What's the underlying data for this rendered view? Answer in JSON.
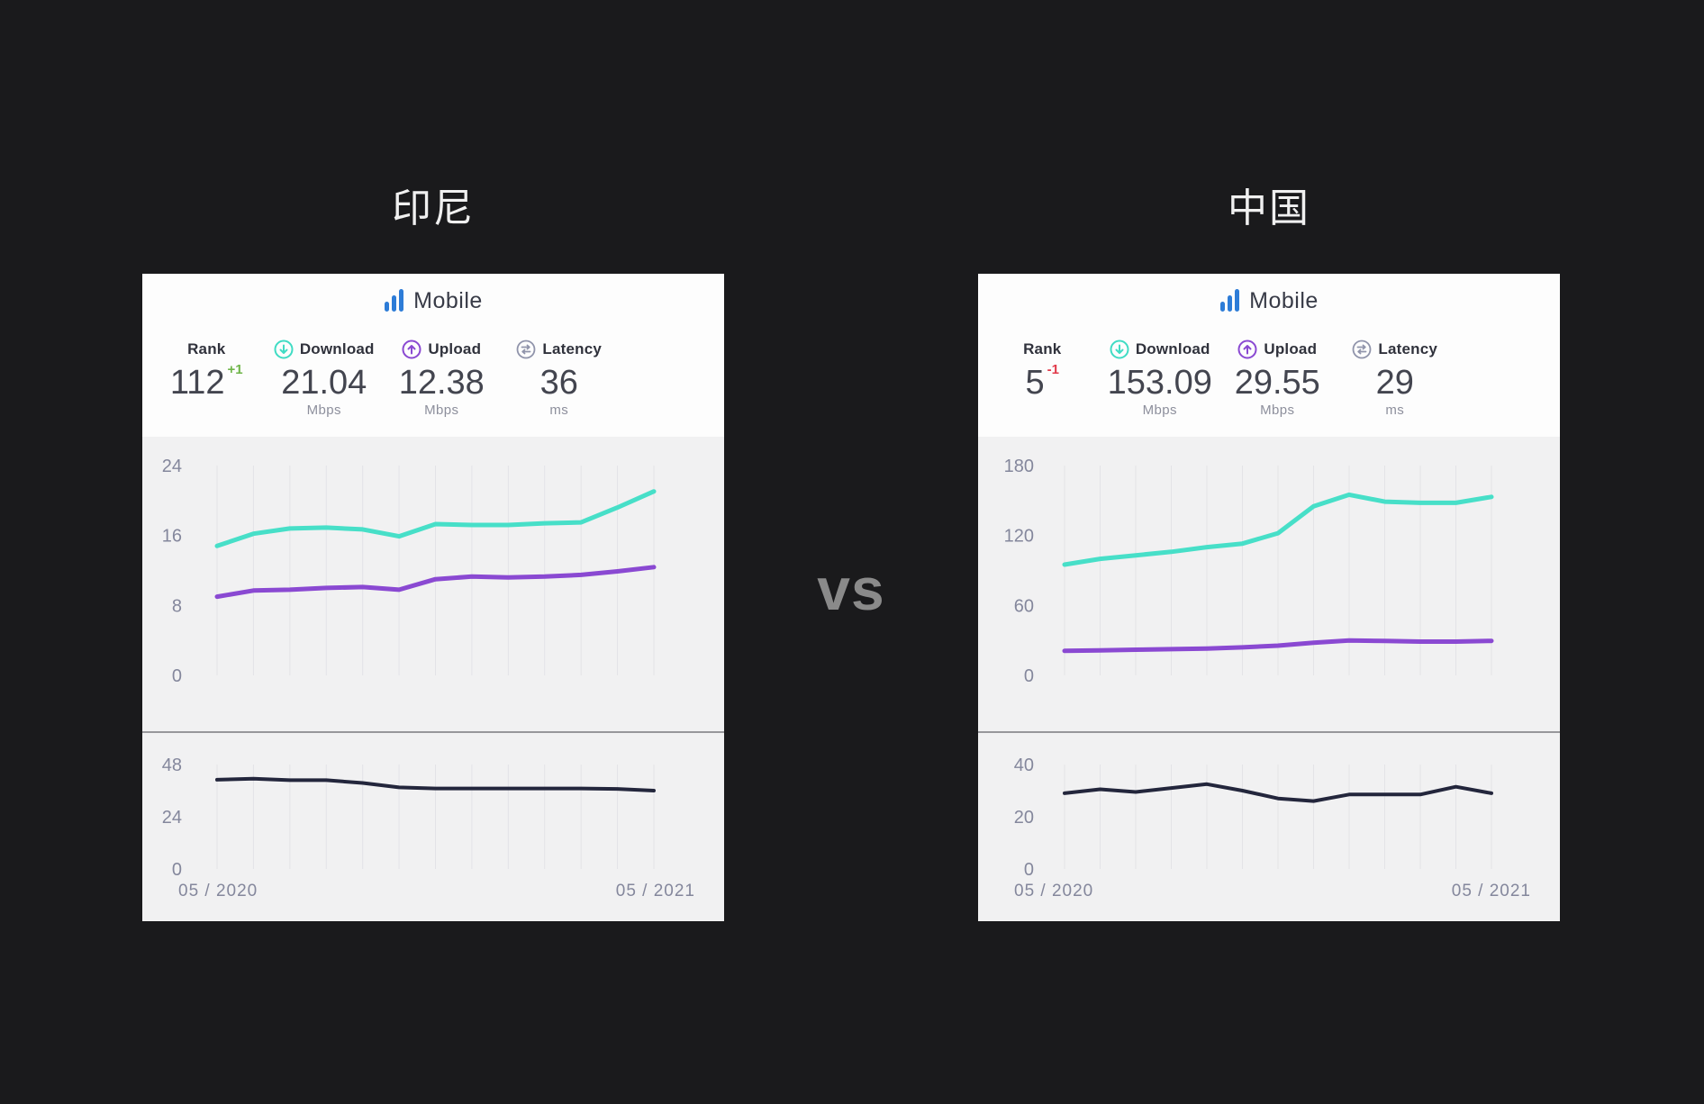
{
  "page": {
    "vs_label": "vs"
  },
  "colors": {
    "background": "#1a1a1c",
    "teal_download": "#47dfc8",
    "purple_upload": "#8a49d2",
    "navy_latency": "#23263c",
    "mobile_blue": "#2d7cd7",
    "green": "#6fb549",
    "red": "#e13a4a",
    "axis_label": "#84879c",
    "gridline": "#e3e3e7",
    "vs_gray": "#8a8a8a"
  },
  "cards": [
    {
      "title": "印尼",
      "mobile_label": "Mobile",
      "stats": {
        "rank": {
          "label": "Rank",
          "value": "112",
          "change": "+1",
          "change_class": "stat-change change up"
        },
        "download": {
          "label": "Download",
          "value": "21.04",
          "unit": "Mbps"
        },
        "upload": {
          "label": "Upload",
          "value": "12.38",
          "unit": "Mbps"
        },
        "latency": {
          "label": "Latency",
          "value": "36",
          "unit": "ms"
        }
      },
      "x_axis": {
        "start": "05 / 2020",
        "end": "05 / 2021"
      }
    },
    {
      "title": "中国",
      "mobile_label": "Mobile",
      "stats": {
        "rank": {
          "label": "Rank",
          "value": "5",
          "change": "-1",
          "change_class": "stat-change change down"
        },
        "download": {
          "label": "Download",
          "value": "153.09",
          "unit": "Mbps"
        },
        "upload": {
          "label": "Upload",
          "value": "29.55",
          "unit": "Mbps"
        },
        "latency": {
          "label": "Latency",
          "value": "29",
          "unit": "ms"
        }
      },
      "x_axis": {
        "start": "05 / 2020",
        "end": "05 / 2021"
      }
    }
  ],
  "chart_data": [
    {
      "card": "印尼",
      "position": "top",
      "type": "line",
      "x": [
        "05/2020",
        "06/2020",
        "07/2020",
        "08/2020",
        "09/2020",
        "10/2020",
        "11/2020",
        "12/2020",
        "01/2021",
        "02/2021",
        "03/2021",
        "04/2021",
        "05/2021"
      ],
      "series": [
        {
          "name": "Download (Mbps)",
          "key": "download-line",
          "color": "#47dfc8",
          "width": 5,
          "values": [
            14.8,
            16.2,
            16.8,
            16.9,
            16.7,
            15.9,
            17.3,
            17.2,
            17.2,
            17.4,
            17.5,
            19.2,
            21.04
          ]
        },
        {
          "name": "Upload (Mbps)",
          "key": "upload-line",
          "color": "#8a49d2",
          "width": 5,
          "values": [
            9.0,
            9.7,
            9.8,
            10.0,
            10.1,
            9.8,
            11.0,
            11.3,
            11.2,
            11.3,
            11.5,
            11.9,
            12.38
          ]
        }
      ],
      "yticks": [
        0,
        8,
        16,
        24
      ],
      "ylim": [
        0,
        24
      ],
      "grid": "vertical",
      "legend": "none"
    },
    {
      "card": "印尼",
      "position": "bottom",
      "type": "line",
      "x": [
        "05/2020",
        "06/2020",
        "07/2020",
        "08/2020",
        "09/2020",
        "10/2020",
        "11/2020",
        "12/2020",
        "01/2021",
        "02/2021",
        "03/2021",
        "04/2021",
        "05/2021"
      ],
      "series": [
        {
          "name": "Latency (ms)",
          "key": "latency-line",
          "color": "#23263c",
          "width": 4,
          "values": [
            41,
            41.5,
            40.8,
            40.8,
            39.5,
            37.5,
            37,
            37,
            37,
            37,
            37,
            36.8,
            36
          ]
        }
      ],
      "yticks": [
        0,
        24,
        48
      ],
      "ylim": [
        0,
        48
      ],
      "grid": "vertical",
      "legend": "none",
      "xtick_labels": [
        "05 / 2020",
        "05 / 2021"
      ]
    },
    {
      "card": "中国",
      "position": "top",
      "type": "line",
      "x": [
        "05/2020",
        "06/2020",
        "07/2020",
        "08/2020",
        "09/2020",
        "10/2020",
        "11/2020",
        "12/2020",
        "01/2021",
        "02/2021",
        "03/2021",
        "04/2021",
        "05/2021"
      ],
      "series": [
        {
          "name": "Download (Mbps)",
          "key": "download-line",
          "color": "#47dfc8",
          "width": 5,
          "values": [
            95,
            100,
            103,
            106,
            110,
            113,
            122,
            145,
            155,
            149,
            148,
            148,
            153.09
          ]
        },
        {
          "name": "Upload (Mbps)",
          "key": "upload-line",
          "color": "#8a49d2",
          "width": 5,
          "values": [
            21,
            21.5,
            22,
            22.5,
            23,
            24,
            25.5,
            28,
            30,
            29.5,
            29,
            29,
            29.55
          ]
        }
      ],
      "yticks": [
        0,
        60,
        120,
        180
      ],
      "ylim": [
        0,
        180
      ],
      "grid": "vertical",
      "legend": "none"
    },
    {
      "card": "中国",
      "position": "bottom",
      "type": "line",
      "x": [
        "05/2020",
        "06/2020",
        "07/2020",
        "08/2020",
        "09/2020",
        "10/2020",
        "11/2020",
        "12/2020",
        "01/2021",
        "02/2021",
        "03/2021",
        "04/2021",
        "05/2021"
      ],
      "series": [
        {
          "name": "Latency (ms)",
          "key": "latency-line",
          "color": "#23263c",
          "width": 4,
          "values": [
            29,
            30.5,
            29.5,
            31,
            32.5,
            30,
            27,
            26,
            28.5,
            28.5,
            28.5,
            31.5,
            29
          ]
        }
      ],
      "yticks": [
        0,
        20,
        40
      ],
      "ylim": [
        0,
        40
      ],
      "grid": "vertical",
      "legend": "none",
      "xtick_labels": [
        "05 / 2020",
        "05 / 2021"
      ]
    }
  ]
}
